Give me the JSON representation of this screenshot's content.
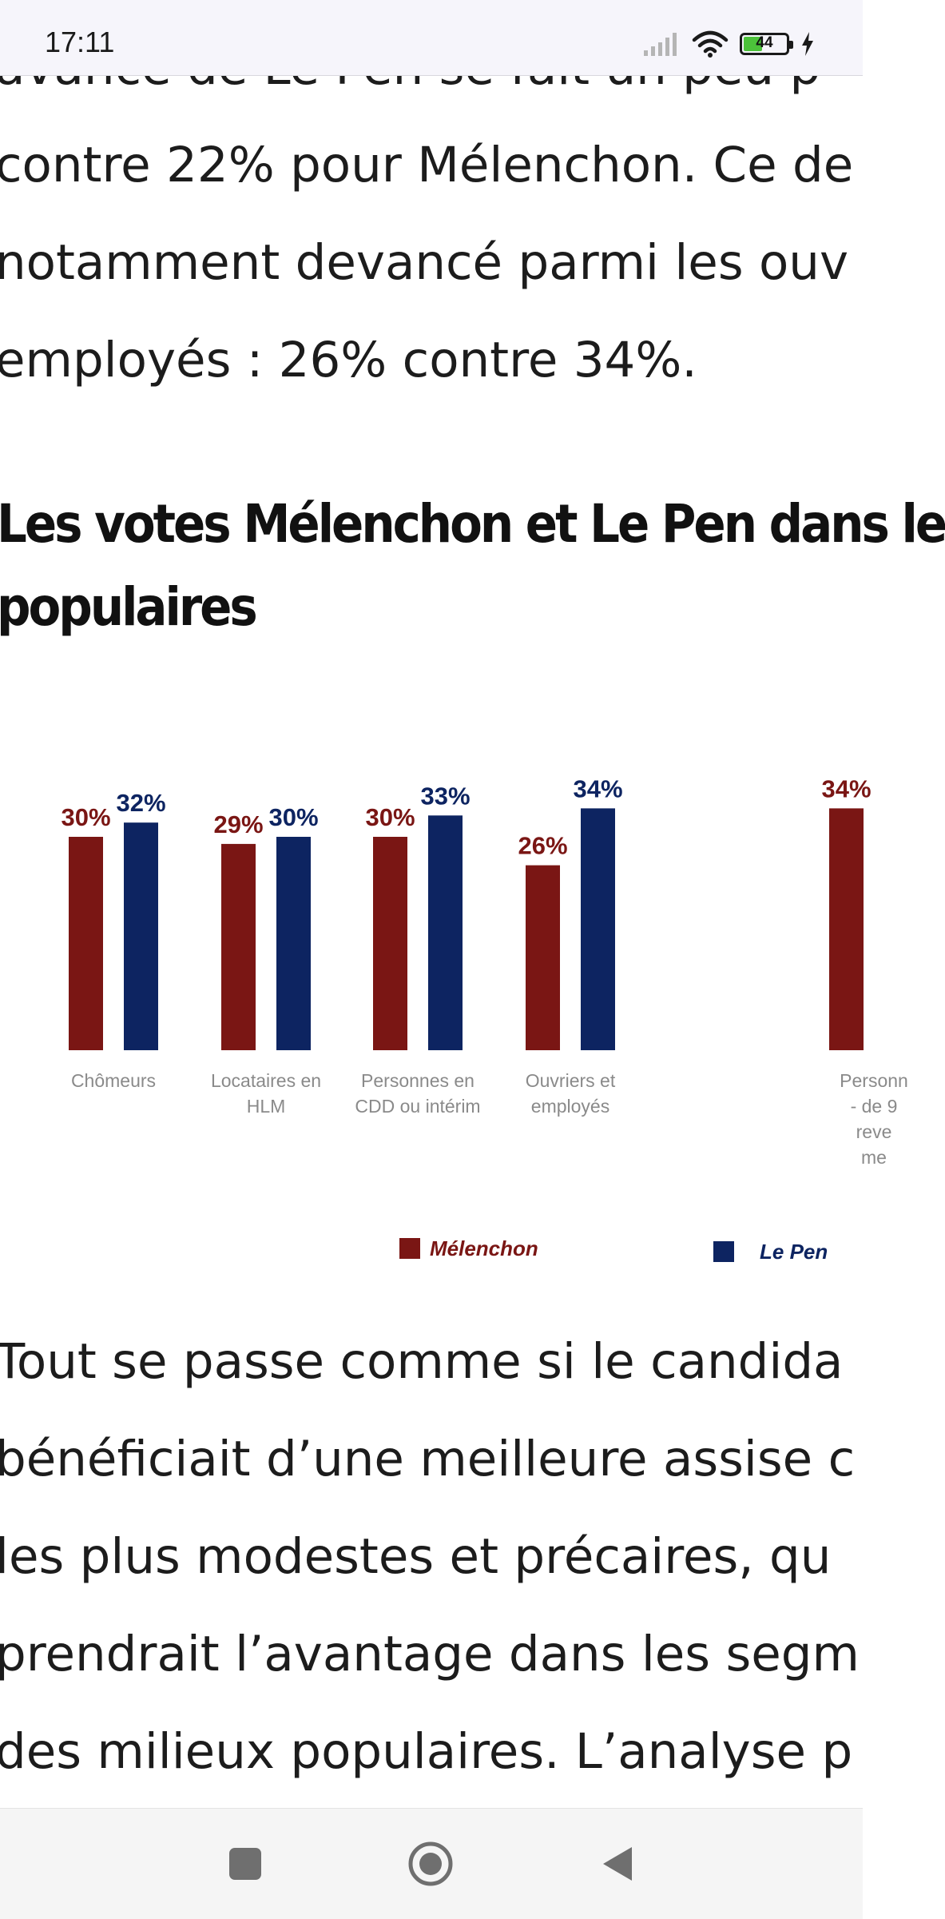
{
  "status_bar": {
    "time": "17:11",
    "battery_level": "44",
    "battery_fraction": 0.44,
    "icons": [
      "signal-icon",
      "wifi-icon",
      "battery-icon",
      "charging-icon"
    ]
  },
  "article": {
    "paragraph_top": [
      "avance de Le Pen se fait un peu p",
      "contre 22% pour Mélenchon. Ce de",
      "notamment devancé parmi les ouv",
      "employés : 26% contre 34%."
    ],
    "heading": [
      "Les votes Mélenchon et Le Pen dans le",
      "populaires"
    ],
    "paragraph_bottom": [
      "Tout se passe comme si le candida",
      "bénéficiait d’une meilleure assise c",
      "les plus modestes et précaires, qu",
      "prendrait l’avantage dans les segm",
      "des milieux populaires. L’analyse p"
    ]
  },
  "chart_data": {
    "type": "bar",
    "categories": [
      [
        "Chômeurs"
      ],
      [
        "Locataires en",
        "HLM"
      ],
      [
        "Personnes en",
        "CDD ou intérim"
      ],
      [
        "Ouvriers et",
        "employés"
      ],
      [
        "Personn",
        "- de 9",
        "reve",
        "me"
      ]
    ],
    "series": [
      {
        "name": "Mélenchon",
        "color": "#7a1614",
        "values": [
          30,
          29,
          30,
          26,
          34
        ],
        "labels": [
          "30%",
          "29%",
          "30%",
          "26%",
          "34%"
        ]
      },
      {
        "name": "Le Pen",
        "color": "#0d2461",
        "values": [
          32,
          30,
          33,
          34,
          null
        ],
        "labels": [
          "32%",
          "30%",
          "33%",
          "34%",
          ""
        ]
      }
    ],
    "legend_placement": "bottom",
    "grid": false
  },
  "nav_bar": {
    "icons": [
      "recents-square-icon",
      "home-circle-icon",
      "back-triangle-icon"
    ]
  }
}
